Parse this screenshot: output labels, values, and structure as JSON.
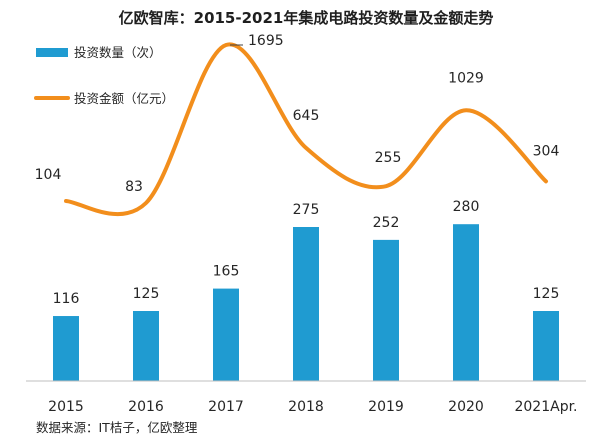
{
  "chart_data": {
    "type": "bar",
    "title": "亿欧智库：2015-2021年集成电路投资数量及金额走势",
    "categories": [
      "2015",
      "2016",
      "2017",
      "2018",
      "2019",
      "2020",
      "2021Apr."
    ],
    "series": [
      {
        "name": "投资数量（次）",
        "type": "bar",
        "values": [
          116,
          125,
          165,
          275,
          252,
          280,
          125
        ],
        "color": "#1f9bd1"
      },
      {
        "name": "投资金额（亿元）",
        "type": "line",
        "smooth": true,
        "values": [
          104,
          83,
          1695,
          645,
          255,
          1029,
          304
        ],
        "color": "#f28e1c"
      }
    ],
    "legend": "top-left",
    "grid": false,
    "source": "数据来源：IT桔子，亿欧整理"
  }
}
